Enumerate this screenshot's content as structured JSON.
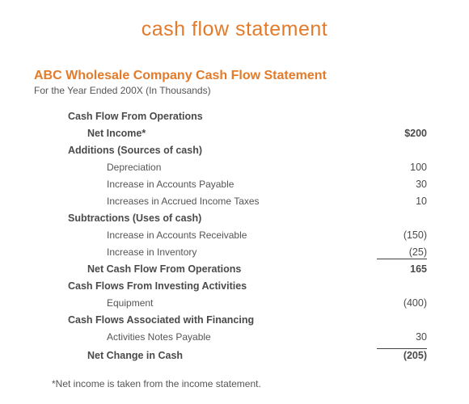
{
  "colors": {
    "accent": "#e37b2a",
    "text": "#4a4a4a",
    "muted": "#555555",
    "background": "#ffffff",
    "rule": "#444444"
  },
  "typography": {
    "main_title_fontsize": 25,
    "main_title_weight": 300,
    "sub_title_fontsize": 16,
    "sub_title_weight": 600,
    "body_fontsize": 12.5,
    "footnote_fontsize": 12
  },
  "header": {
    "main_title": "cash flow statement",
    "sub_title": "ABC Wholesale Company Cash Flow Statement",
    "period": "For the Year Ended 200X (In Thousands)"
  },
  "statement": {
    "type": "table",
    "columns": [
      "Label",
      "Amount"
    ],
    "rows": [
      {
        "label": "Cash Flow From Operations",
        "value": "",
        "bold": true,
        "indent": 0,
        "kind": "section"
      },
      {
        "label": "Net Income*",
        "value": "$200",
        "bold": true,
        "indent": 1,
        "kind": "line"
      },
      {
        "label": "Additions (Sources of cash)",
        "value": "",
        "bold": true,
        "indent": 0,
        "kind": "subsection"
      },
      {
        "label": "Depreciation",
        "value": "100",
        "bold": false,
        "indent": 2,
        "kind": "line"
      },
      {
        "label": "Increase in Accounts Payable",
        "value": "30",
        "bold": false,
        "indent": 2,
        "kind": "line"
      },
      {
        "label": "Increases in Accrued Income Taxes",
        "value": "10",
        "bold": false,
        "indent": 2,
        "kind": "line"
      },
      {
        "label": "Subtractions (Uses of cash)",
        "value": "",
        "bold": true,
        "indent": 0,
        "kind": "subsection"
      },
      {
        "label": "Increase in Accounts Receivable",
        "value": "(150)",
        "bold": false,
        "indent": 2,
        "kind": "line"
      },
      {
        "label": "Increase in Inventory",
        "value": "(25)",
        "bold": false,
        "indent": 2,
        "kind": "line",
        "underline_item": true
      },
      {
        "label": "Net Cash Flow From Operations",
        "value": "165",
        "bold": true,
        "indent": 1,
        "kind": "total"
      },
      {
        "label": "Cash Flows From Investing Activities",
        "value": "",
        "bold": true,
        "indent": 0,
        "kind": "section"
      },
      {
        "label": "Equipment",
        "value": "(400)",
        "bold": false,
        "indent": 2,
        "kind": "line"
      },
      {
        "label": "Cash Flows Associated with Financing",
        "value": "",
        "bold": true,
        "indent": 0,
        "kind": "section"
      },
      {
        "label": "Activities Notes Payable",
        "value": "30",
        "bold": false,
        "indent": 2,
        "kind": "line"
      },
      {
        "label": "Net Change in Cash",
        "value": "(205)",
        "bold": true,
        "indent": 1,
        "kind": "total",
        "underline_top": true
      }
    ]
  },
  "footnote": "*Net income is taken from the income statement."
}
